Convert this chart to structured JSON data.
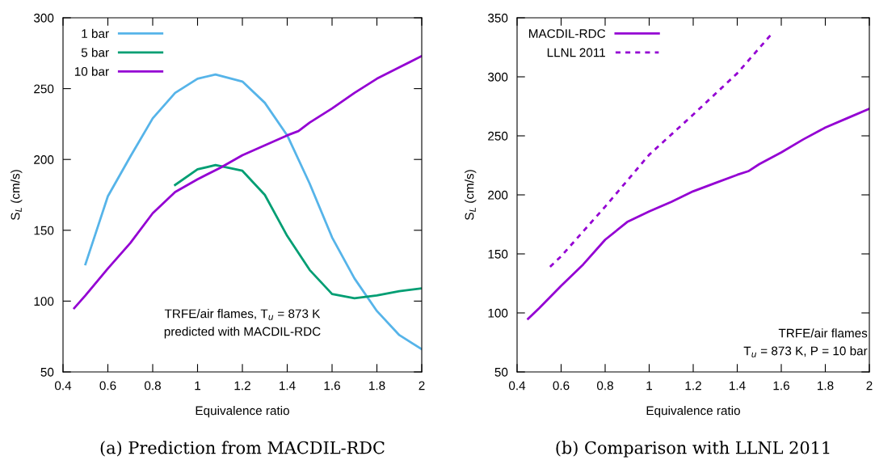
{
  "chart_data": [
    {
      "type": "line",
      "title": "(a) Prediction from MACDIL-RDC",
      "xlabel": "Equivalence ratio",
      "ylabel": "S$_{L}$ (cm/s)",
      "xlim": [
        0.4,
        2
      ],
      "xticks": [
        0.4,
        0.6,
        0.8,
        1,
        1.2,
        1.4,
        1.6,
        1.8,
        2
      ],
      "ylim": [
        50,
        300
      ],
      "yticks": [
        50,
        100,
        150,
        200,
        250,
        300
      ],
      "legend": "top left",
      "grid": false,
      "line_style": "solid",
      "annotations": [
        "TRFE/air flames, T$_{u}$ = 873 K",
        "predicted with MACDIL-RDC"
      ],
      "series": [
        {
          "name": "1 bar",
          "color": "#56b4e9",
          "x": [
            0.5,
            0.6,
            0.7,
            0.8,
            0.9,
            1.0,
            1.08,
            1.2,
            1.3,
            1.4,
            1.5,
            1.6,
            1.7,
            1.8,
            1.9,
            2.0
          ],
          "values": [
            126,
            174,
            202,
            229,
            247,
            257,
            260,
            255,
            240,
            217,
            183,
            145,
            116,
            93,
            76,
            66
          ]
        },
        {
          "name": "5 bar",
          "color": "#009e73",
          "x": [
            0.9,
            1.0,
            1.08,
            1.2,
            1.3,
            1.4,
            1.5,
            1.6,
            1.7,
            1.8,
            1.9,
            2.0
          ],
          "values": [
            182,
            193,
            196,
            192,
            175,
            146,
            122,
            105,
            102,
            104,
            107,
            109
          ]
        },
        {
          "name": "10 bar",
          "color": "#9400d3",
          "x": [
            0.45,
            0.5,
            0.6,
            0.7,
            0.8,
            0.9,
            1.0,
            1.1,
            1.2,
            1.3,
            1.4,
            1.45,
            1.5,
            1.6,
            1.7,
            1.8,
            1.9,
            2.0
          ],
          "values": [
            95,
            104,
            123,
            141,
            162,
            177,
            186,
            194,
            203,
            210,
            217,
            220,
            226,
            236,
            247,
            257,
            265,
            273
          ]
        }
      ]
    },
    {
      "type": "line",
      "title": "(b) Comparison with LLNL 2011",
      "xlabel": "Equivalence ratio",
      "ylabel": "S$_{L}$ (cm/s)",
      "xlim": [
        0.4,
        2
      ],
      "xticks": [
        0.4,
        0.6,
        0.8,
        1,
        1.2,
        1.4,
        1.6,
        1.8,
        2
      ],
      "ylim": [
        50,
        350
      ],
      "yticks": [
        50,
        100,
        150,
        200,
        250,
        300,
        350
      ],
      "legend": "top left",
      "grid": false,
      "annotations": [
        "TRFE/air flames",
        "T$_{u}$ = 873 K, P = 10 bar"
      ],
      "series": [
        {
          "name": "MACDIL-RDC",
          "color": "#9400d3",
          "line_style": "solid",
          "x": [
            0.45,
            0.5,
            0.6,
            0.7,
            0.8,
            0.9,
            1.0,
            1.1,
            1.2,
            1.3,
            1.4,
            1.45,
            1.5,
            1.6,
            1.7,
            1.8,
            1.9,
            2.0
          ],
          "values": [
            95,
            104,
            123,
            141,
            162,
            177,
            186,
            194,
            203,
            210,
            217,
            220,
            226,
            236,
            247,
            257,
            265,
            273
          ]
        },
        {
          "name": "LLNL 2011",
          "color": "#9400d3",
          "line_style": "dashed",
          "x": [
            0.55,
            0.6,
            0.8,
            1.0,
            1.2,
            1.4,
            1.55
          ],
          "values": [
            139,
            148,
            190,
            234,
            268,
            303,
            335
          ]
        }
      ]
    }
  ]
}
